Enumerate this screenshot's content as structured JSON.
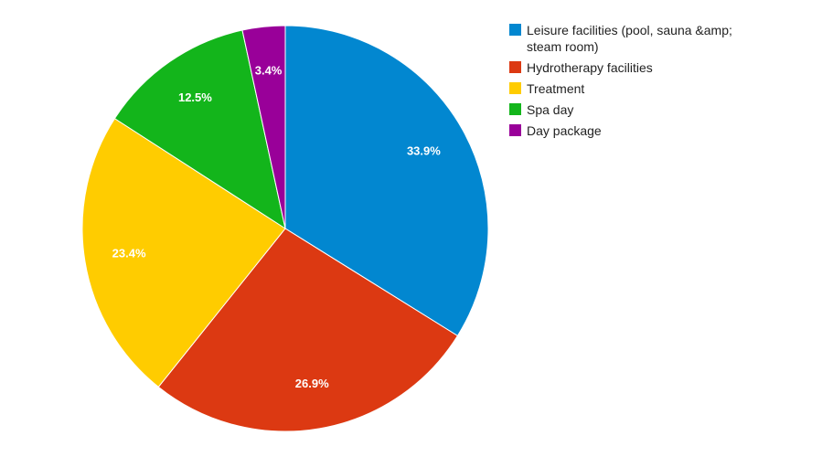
{
  "chart_data": {
    "type": "pie",
    "title": "",
    "legend_position": "right",
    "series": [
      {
        "name": "",
        "slices": [
          {
            "label": "Leisure facilities (pool, sauna &amp; steam room)",
            "value": 33.9,
            "display": "33.9%",
            "color": "#0287d0"
          },
          {
            "label": "Hydrotherapy facilities",
            "value": 26.9,
            "display": "26.9%",
            "color": "#dc3912"
          },
          {
            "label": "Treatment",
            "value": 23.4,
            "display": "23.4%",
            "color": "#ffcc00"
          },
          {
            "label": "Spa day",
            "value": 12.5,
            "display": "12.5%",
            "color": "#13b51b"
          },
          {
            "label": "Day package",
            "value": 3.4,
            "display": "3.4%",
            "color": "#990099"
          }
        ]
      }
    ]
  }
}
